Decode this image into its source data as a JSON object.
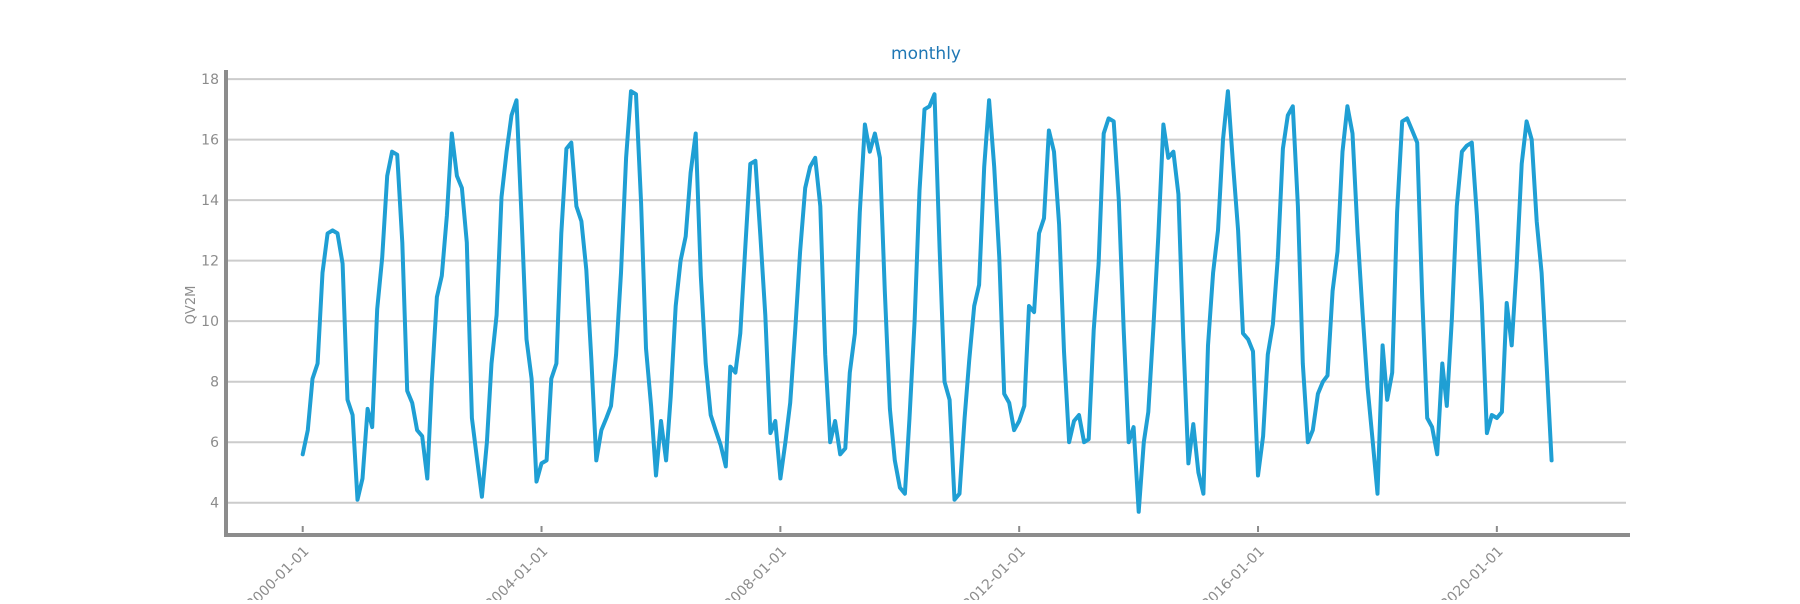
{
  "chart_data": {
    "type": "line",
    "title": "monthly",
    "xlabel": "",
    "ylabel": "QV2M",
    "x_type": "date",
    "xlim": [
      "1998-10-01",
      "2022-03-01"
    ],
    "ylim": [
      3,
      18.3
    ],
    "y_ticks": [
      4,
      6,
      8,
      10,
      12,
      14,
      16,
      18
    ],
    "x_ticks": [
      "2000-01-01",
      "2004-01-01",
      "2008-01-01",
      "2012-01-01",
      "2016-01-01",
      "2020-01-01"
    ],
    "grid": "horizontal",
    "series": [
      {
        "color": "#1f9fd4",
        "x": [
          "2000-01-01",
          "2000-02-01",
          "2000-03-01",
          "2000-04-01",
          "2000-05-01",
          "2000-06-01",
          "2000-07-01",
          "2000-08-01",
          "2000-09-01",
          "2000-10-01",
          "2000-11-01",
          "2000-12-01",
          "2001-01-01",
          "2001-02-01",
          "2001-03-01",
          "2001-04-01",
          "2001-05-01",
          "2001-06-01",
          "2001-07-01",
          "2001-08-01",
          "2001-09-01",
          "2001-10-01",
          "2001-11-01",
          "2001-12-01",
          "2002-01-01",
          "2002-02-01",
          "2002-03-01",
          "2002-04-01",
          "2002-05-01",
          "2002-06-01",
          "2002-07-01",
          "2002-08-01",
          "2002-09-01",
          "2002-10-01",
          "2002-11-01",
          "2002-12-01",
          "2003-01-01",
          "2003-02-01",
          "2003-03-01",
          "2003-04-01",
          "2003-05-01",
          "2003-06-01",
          "2003-07-01",
          "2003-08-01",
          "2003-09-01",
          "2003-10-01",
          "2003-11-01",
          "2003-12-01",
          "2004-01-01",
          "2004-02-01",
          "2004-03-01",
          "2004-04-01",
          "2004-05-01",
          "2004-06-01",
          "2004-07-01",
          "2004-08-01",
          "2004-09-01",
          "2004-10-01",
          "2004-11-01",
          "2004-12-01",
          "2005-01-01",
          "2005-02-01",
          "2005-03-01",
          "2005-04-01",
          "2005-05-01",
          "2005-06-01",
          "2005-07-01",
          "2005-08-01",
          "2005-09-01",
          "2005-10-01",
          "2005-11-01",
          "2005-12-01",
          "2006-01-01",
          "2006-02-01",
          "2006-03-01",
          "2006-04-01",
          "2006-05-01",
          "2006-06-01",
          "2006-07-01",
          "2006-08-01",
          "2006-09-01",
          "2006-10-01",
          "2006-11-01",
          "2006-12-01",
          "2007-01-01",
          "2007-02-01",
          "2007-03-01",
          "2007-04-01",
          "2007-05-01",
          "2007-06-01",
          "2007-07-01",
          "2007-08-01",
          "2007-09-01",
          "2007-10-01",
          "2007-11-01",
          "2007-12-01",
          "2008-01-01",
          "2008-02-01",
          "2008-03-01",
          "2008-04-01",
          "2008-05-01",
          "2008-06-01",
          "2008-07-01",
          "2008-08-01",
          "2008-09-01",
          "2008-10-01",
          "2008-11-01",
          "2008-12-01",
          "2009-01-01",
          "2009-02-01",
          "2009-03-01",
          "2009-04-01",
          "2009-05-01",
          "2009-06-01",
          "2009-07-01",
          "2009-08-01",
          "2009-09-01",
          "2009-10-01",
          "2009-11-01",
          "2009-12-01",
          "2010-01-01",
          "2010-02-01",
          "2010-03-01",
          "2010-04-01",
          "2010-05-01",
          "2010-06-01",
          "2010-07-01",
          "2010-08-01",
          "2010-09-01",
          "2010-10-01",
          "2010-11-01",
          "2010-12-01",
          "2011-01-01",
          "2011-02-01",
          "2011-03-01",
          "2011-04-01",
          "2011-05-01",
          "2011-06-01",
          "2011-07-01",
          "2011-08-01",
          "2011-09-01",
          "2011-10-01",
          "2011-11-01",
          "2011-12-01",
          "2012-01-01",
          "2012-02-01",
          "2012-03-01",
          "2012-04-01",
          "2012-05-01",
          "2012-06-01",
          "2012-07-01",
          "2012-08-01",
          "2012-09-01",
          "2012-10-01",
          "2012-11-01",
          "2012-12-01",
          "2013-01-01",
          "2013-02-01",
          "2013-03-01",
          "2013-04-01",
          "2013-05-01",
          "2013-06-01",
          "2013-07-01",
          "2013-08-01",
          "2013-09-01",
          "2013-10-01",
          "2013-11-01",
          "2013-12-01",
          "2014-01-01",
          "2014-02-01",
          "2014-03-01",
          "2014-04-01",
          "2014-05-01",
          "2014-06-01",
          "2014-07-01",
          "2014-08-01",
          "2014-09-01",
          "2014-10-01",
          "2014-11-01",
          "2014-12-01",
          "2015-01-01",
          "2015-02-01",
          "2015-03-01",
          "2015-04-01",
          "2015-05-01",
          "2015-06-01",
          "2015-07-01",
          "2015-08-01",
          "2015-09-01",
          "2015-10-01",
          "2015-11-01",
          "2015-12-01",
          "2016-01-01",
          "2016-02-01",
          "2016-03-01",
          "2016-04-01",
          "2016-05-01",
          "2016-06-01",
          "2016-07-01",
          "2016-08-01",
          "2016-09-01",
          "2016-10-01",
          "2016-11-01",
          "2016-12-01",
          "2017-01-01",
          "2017-02-01",
          "2017-03-01",
          "2017-04-01",
          "2017-05-01",
          "2017-06-01",
          "2017-07-01",
          "2017-08-01",
          "2017-09-01",
          "2017-10-01",
          "2017-11-01",
          "2017-12-01",
          "2018-01-01",
          "2018-02-01",
          "2018-03-01",
          "2018-04-01",
          "2018-05-01",
          "2018-06-01",
          "2018-07-01",
          "2018-08-01",
          "2018-09-01",
          "2018-10-01",
          "2018-11-01",
          "2018-12-01",
          "2019-01-01",
          "2019-02-01",
          "2019-03-01",
          "2019-04-01",
          "2019-05-01",
          "2019-06-01",
          "2019-07-01",
          "2019-08-01",
          "2019-09-01",
          "2019-10-01",
          "2019-11-01",
          "2019-12-01",
          "2020-01-01",
          "2020-02-01",
          "2020-03-01",
          "2020-04-01",
          "2020-05-01",
          "2020-06-01",
          "2020-07-01",
          "2020-08-01",
          "2020-09-01",
          "2020-10-01",
          "2020-11-01",
          "2020-12-01"
        ],
        "y": [
          5.6,
          6.4,
          8.1,
          8.6,
          11.6,
          12.9,
          13.0,
          12.9,
          11.9,
          7.4,
          6.9,
          4.1,
          4.8,
          7.1,
          6.5,
          10.4,
          12.1,
          14.8,
          15.6,
          15.5,
          12.6,
          7.7,
          7.3,
          6.4,
          6.2,
          4.8,
          8.0,
          10.8,
          11.5,
          13.5,
          16.2,
          14.8,
          14.4,
          12.6,
          6.8,
          5.5,
          4.2,
          6.0,
          8.6,
          10.2,
          14.1,
          15.6,
          16.8,
          17.3,
          13.4,
          9.4,
          8.1,
          4.7,
          5.3,
          5.4,
          8.1,
          8.6,
          12.9,
          15.7,
          15.9,
          13.8,
          13.3,
          11.7,
          8.7,
          5.4,
          6.4,
          6.8,
          7.2,
          8.9,
          11.6,
          15.4,
          17.6,
          17.5,
          13.9,
          9.1,
          7.2,
          4.9,
          6.7,
          5.4,
          7.5,
          10.5,
          12.0,
          12.8,
          14.9,
          16.2,
          11.5,
          8.6,
          6.9,
          6.4,
          5.9,
          5.2,
          8.5,
          8.3,
          9.6,
          12.5,
          15.2,
          15.3,
          12.8,
          10.2,
          6.3,
          6.7,
          4.8,
          6.0,
          7.3,
          9.7,
          12.3,
          14.4,
          15.1,
          15.4,
          13.8,
          8.9,
          6.0,
          6.7,
          5.6,
          5.8,
          8.3,
          9.6,
          13.6,
          16.5,
          15.6,
          16.2,
          15.4,
          11.0,
          7.1,
          5.4,
          4.5,
          4.3,
          6.8,
          10.0,
          14.3,
          17.0,
          17.1,
          17.5,
          12.4,
          8.0,
          7.4,
          4.1,
          4.3,
          6.8,
          8.7,
          10.5,
          11.2,
          15.1,
          17.3,
          15.1,
          12.1,
          7.6,
          7.3,
          6.4,
          6.7,
          7.2,
          10.5,
          10.3,
          12.9,
          13.4,
          16.3,
          15.6,
          13.2,
          9.0,
          6.0,
          6.7,
          6.9,
          6.0,
          6.1,
          9.7,
          11.9,
          16.2,
          16.7,
          16.6,
          14.0,
          9.7,
          6.0,
          6.5,
          3.7,
          6.0,
          7.0,
          9.8,
          12.8,
          16.5,
          15.4,
          15.6,
          14.2,
          9.4,
          5.3,
          6.6,
          5.0,
          4.3,
          9.2,
          11.6,
          13.0,
          16.0,
          17.6,
          15.2,
          13.0,
          9.6,
          9.4,
          9.0,
          4.9,
          6.2,
          8.9,
          9.9,
          12.1,
          15.7,
          16.8,
          17.1,
          13.8,
          8.6,
          6.0,
          6.4,
          7.6,
          8.0,
          8.2,
          11.0,
          12.3,
          15.6,
          17.1,
          16.2,
          12.9,
          10.3,
          7.8,
          6.1,
          4.3,
          9.2,
          7.4,
          8.3,
          13.6,
          16.6,
          16.7,
          16.3,
          15.9,
          10.8,
          6.8,
          6.5,
          5.6,
          8.6,
          7.2,
          10.1,
          13.8,
          15.6,
          15.8,
          15.9,
          13.5,
          10.6,
          6.3,
          6.9,
          6.8,
          7.0,
          10.6,
          9.2,
          11.8,
          15.2,
          16.6,
          16.0,
          13.3,
          11.6,
          8.5,
          5.4
        ]
      }
    ]
  }
}
